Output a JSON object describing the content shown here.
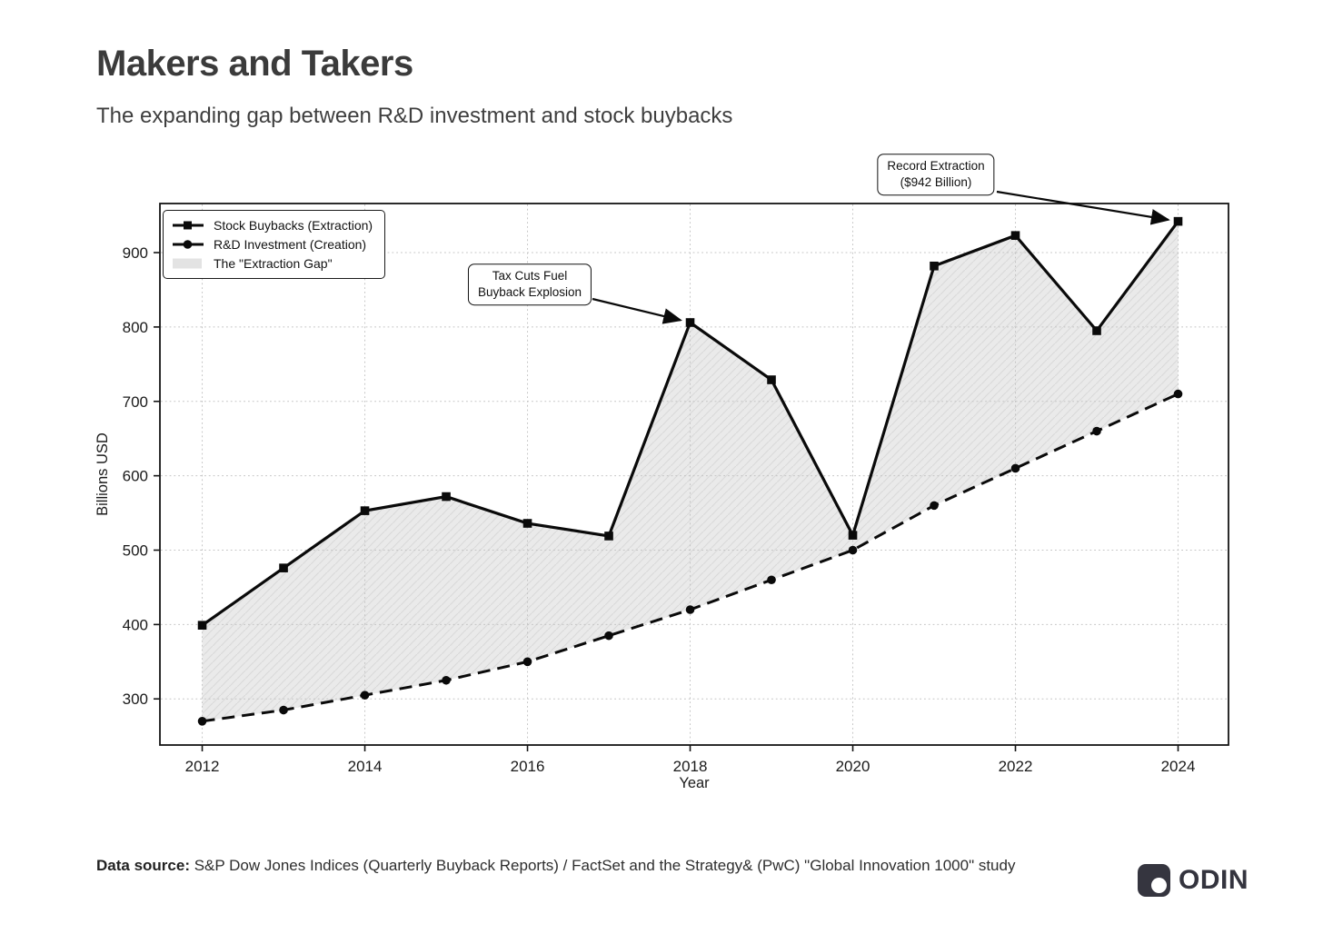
{
  "header": {
    "title": "Makers and Takers",
    "subtitle": "The expanding gap between R&D investment and stock buybacks"
  },
  "chart_data": {
    "type": "line",
    "x": [
      2012,
      2013,
      2014,
      2015,
      2016,
      2017,
      2018,
      2019,
      2020,
      2021,
      2022,
      2023,
      2024
    ],
    "series": [
      {
        "name": "Stock Buybacks (Extraction)",
        "style": "solid",
        "marker": "square",
        "values": [
          399,
          476,
          553,
          572,
          536,
          519,
          806,
          729,
          520,
          882,
          923,
          795,
          942
        ]
      },
      {
        "name": "R&D Investment (Creation)",
        "style": "dashed",
        "marker": "circle",
        "values": [
          270,
          285,
          305,
          325,
          350,
          385,
          420,
          460,
          500,
          560,
          610,
          660,
          710
        ]
      }
    ],
    "fill_between_label": "The \"Extraction Gap\"",
    "title": "Makers and Takers",
    "xlabel": "Year",
    "ylabel": "Billions USD",
    "xticks": [
      2012,
      2014,
      2016,
      2018,
      2020,
      2022,
      2024
    ],
    "yticks": [
      300,
      400,
      500,
      600,
      700,
      800,
      900
    ],
    "xlim": [
      2011.48,
      2024.62
    ],
    "ylim": [
      238,
      966
    ],
    "grid": true,
    "legend_position": "upper left",
    "legend": [
      "Stock Buybacks (Extraction)",
      "R&D Investment (Creation)",
      "The \"Extraction Gap\""
    ],
    "annotations": [
      {
        "line1": "Tax Cuts Fuel",
        "line2": "Buyback Explosion",
        "target_year": 2018,
        "target_value": 806
      },
      {
        "line1": "Record Extraction",
        "line2": "($942 Billion)",
        "target_year": 2024,
        "target_value": 942
      }
    ]
  },
  "footer": {
    "source_label": "Data source:",
    "source_text": "S&P Dow Jones Indices (Quarterly Buyback Reports) / FactSet and the Strategy& (PwC) \"Global Innovation 1000\" study",
    "brand": "ODIN"
  },
  "colors": {
    "line": "#0a0a0a",
    "gap_fill": "#eaeaea",
    "gap_hatch": "#d9d9d9",
    "grid": "#c4c4c4",
    "axis": "#141414",
    "title_text": "#3b3b3b",
    "brand_dark": "#35353f"
  }
}
